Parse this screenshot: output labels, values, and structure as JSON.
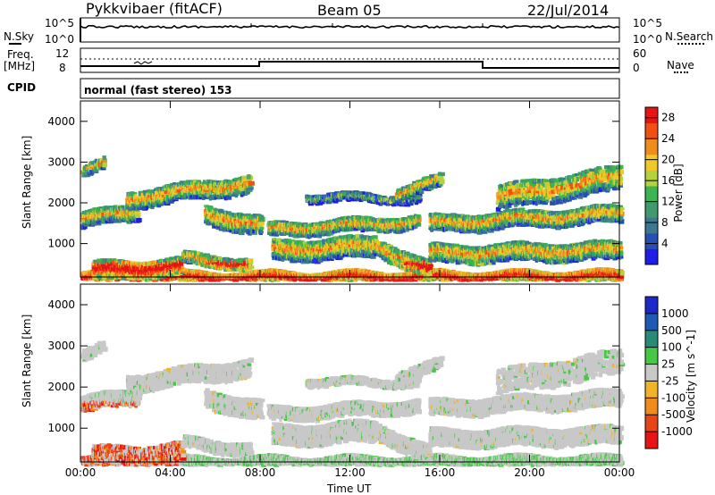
{
  "header": {
    "station": "Pykkvibaer (fitACF)",
    "beam": "Beam 05",
    "date": "22/Jul/2014"
  },
  "side_labels": {
    "nsky": "N.Sky",
    "nsearch": "N.Search",
    "freq_1": "Freq.",
    "freq_2": "[MHz]",
    "nave": "Nave",
    "cpid": "CPID",
    "cpid_text": "normal (fast stereo) 153"
  },
  "noise_axis": {
    "left_ticks": [
      "10^5",
      "10^0"
    ],
    "right_ticks": [
      "10^5",
      "10^0"
    ]
  },
  "freq_axis": {
    "left_ticks": [
      "12",
      "8"
    ],
    "right_ticks": [
      "60",
      "0"
    ]
  },
  "colors": {
    "power": [
      "#1e1ee6",
      "#2850b4",
      "#3c7890",
      "#409a6e",
      "#3cb450",
      "#b4d23c",
      "#f0c828",
      "#f08c1e",
      "#f05014",
      "#e61414"
    ],
    "velocity": [
      "#1e28c8",
      "#1e5ab4",
      "#2a8a78",
      "#46c846",
      "#c8c8c8",
      "#f0b428",
      "#f08c1e",
      "#e64614",
      "#e61414"
    ]
  },
  "chart_data": [
    {
      "type": "heatmap",
      "title": "",
      "xlabel": "",
      "ylabel": "Slant Range [km]",
      "xlim": [
        "00:00",
        "24:00"
      ],
      "ylim": [
        180,
        4500
      ],
      "x_ticks": [
        "00:00",
        "04:00",
        "08:00",
        "12:00",
        "16:00",
        "20:00",
        "00:00"
      ],
      "y_ticks": [
        "1000",
        "2000",
        "3000",
        "4000"
      ],
      "colorbar": {
        "label": "Power [dB]",
        "range": [
          0,
          30
        ],
        "ticks": [
          "4",
          "8",
          "12",
          "16",
          "20",
          "24",
          "28"
        ]
      },
      "grid": false
    },
    {
      "type": "heatmap",
      "title": "",
      "xlabel": "Time UT",
      "ylabel": "Slant Range [km]",
      "xlim": [
        "00:00",
        "24:00"
      ],
      "ylim": [
        180,
        4500
      ],
      "x_ticks": [
        "00:00",
        "04:00",
        "08:00",
        "12:00",
        "16:00",
        "20:00",
        "00:00"
      ],
      "y_ticks": [
        "1000",
        "2000",
        "3000",
        "4000"
      ],
      "colorbar": {
        "label": "Velocity [m s^-1]",
        "ticks": [
          "1000",
          "500",
          "100",
          "25",
          "-25",
          "-100",
          "-500",
          "-1000"
        ]
      },
      "grid": false
    }
  ]
}
